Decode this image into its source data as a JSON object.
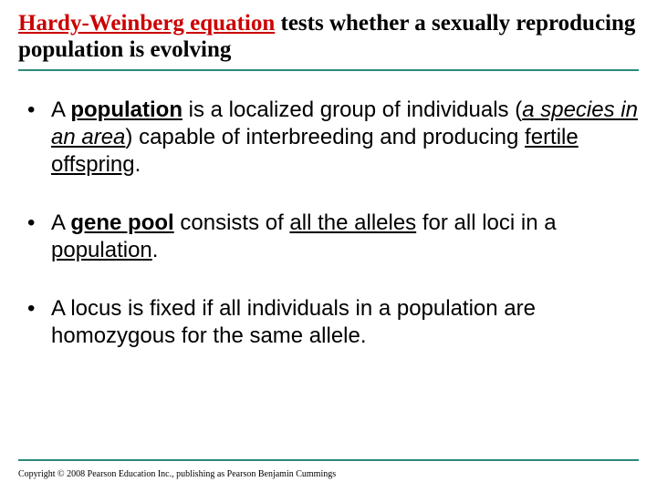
{
  "title": {
    "part1": "Hardy-Weinberg equation",
    "part2": " tests whether a sexually reproducing population is evolving"
  },
  "bullets": [
    {
      "runs": [
        {
          "t": "A ",
          "cls": ""
        },
        {
          "t": "population",
          "cls": "bold ul"
        },
        {
          "t": " is a localized group of individuals (",
          "cls": ""
        },
        {
          "t": "a species in an area",
          "cls": "ital ul"
        },
        {
          "t": ") capable of interbreeding and producing ",
          "cls": ""
        },
        {
          "t": "fertile offspring",
          "cls": "ul"
        },
        {
          "t": ".",
          "cls": ""
        }
      ]
    },
    {
      "runs": [
        {
          "t": "A ",
          "cls": ""
        },
        {
          "t": "gene pool",
          "cls": "bold ul"
        },
        {
          "t": " consists of ",
          "cls": ""
        },
        {
          "t": "all the alleles",
          "cls": "ul"
        },
        {
          "t": " for all loci in a ",
          "cls": ""
        },
        {
          "t": "population",
          "cls": "ul"
        },
        {
          "t": ".",
          "cls": ""
        }
      ]
    },
    {
      "runs": [
        {
          "t": "A locus is fixed if all individuals in a population are homozygous for the same allele.",
          "cls": ""
        }
      ]
    }
  ],
  "copyright": "Copyright © 2008 Pearson Education Inc., publishing as Pearson Benjamin Cummings",
  "colors": {
    "rule": "#2a8a7a",
    "accent": "#cc0000",
    "text": "#000000",
    "background": "#ffffff"
  }
}
